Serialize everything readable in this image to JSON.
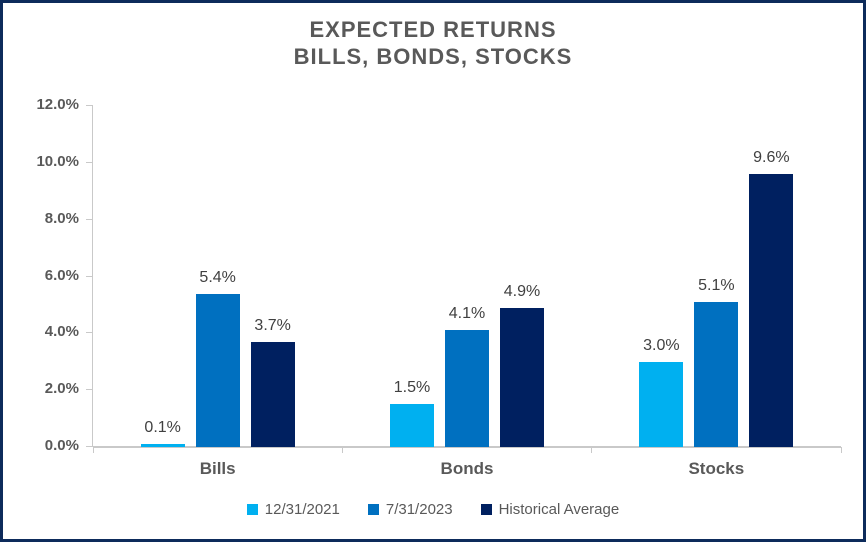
{
  "window": {
    "background": "#FFFFFF",
    "border_color": "#0D2B5B"
  },
  "chart_data": {
    "type": "bar",
    "title_lines": [
      "EXPECTED RETURNS",
      "BILLS, BONDS, STOCKS"
    ],
    "title": "EXPECTED RETURNS BILLS, BONDS, STOCKS",
    "categories": [
      "Bills",
      "Bonds",
      "Stocks"
    ],
    "series": [
      {
        "name": "12/31/2021",
        "color": "#00B0F0",
        "values": [
          0.1,
          1.5,
          3.0
        ]
      },
      {
        "name": "7/31/2023",
        "color": "#0070C0",
        "values": [
          5.4,
          4.1,
          5.1
        ]
      },
      {
        "name": "Historical Average",
        "color": "#002060",
        "values": [
          3.7,
          4.9,
          9.6
        ]
      }
    ],
    "data_labels": [
      [
        "0.1%",
        "1.5%",
        "3.0%"
      ],
      [
        "5.4%",
        "4.1%",
        "5.1%"
      ],
      [
        "3.7%",
        "4.9%",
        "9.6%"
      ]
    ],
    "xlabel": "",
    "ylabel": "",
    "ylim": [
      0,
      12
    ],
    "ytick_step": 2,
    "ytick_labels": [
      "0.0%",
      "2.0%",
      "4.0%",
      "6.0%",
      "8.0%",
      "10.0%",
      "12.0%"
    ],
    "legend_position": "bottom",
    "grid": false,
    "axis_color": "#C9C9C9",
    "text_colors": {
      "title": "#595959",
      "axis": "#595959",
      "data_label": "#404040",
      "legend": "#595959"
    }
  }
}
